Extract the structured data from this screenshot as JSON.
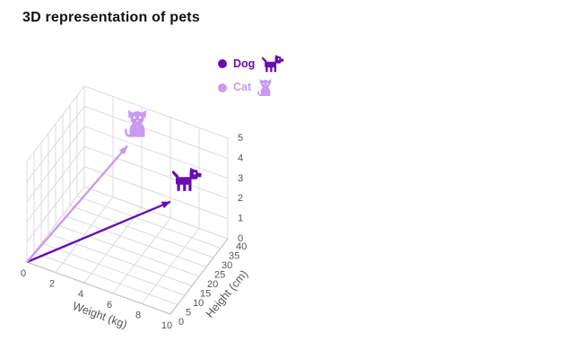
{
  "colors": {
    "dog": "#6a0dad",
    "cat": "#c89af0",
    "grid": "#dcdcdc",
    "axis_edge": "#c6c6c6",
    "tick_label": "#555555",
    "axis_title": "#555555",
    "title_text": "#111111",
    "background": "#ffffff"
  },
  "legend": {
    "items": [
      {
        "label": "Dog",
        "icon": "dog-icon",
        "series": 0
      },
      {
        "label": "Cat",
        "icon": "cat-icon",
        "series": 1
      }
    ]
  },
  "chart_data": {
    "type": "scatter",
    "projection": "3d",
    "title": "3D representation of pets",
    "series": [
      {
        "name": "Dog",
        "color": "#6a0dad",
        "vector_from_origin": true,
        "point": {
          "weight_kg": 7,
          "height_cm": 30,
          "z": 2
        }
      },
      {
        "name": "Cat",
        "color": "#c89af0",
        "vector_from_origin": true,
        "point": {
          "weight_kg": 4,
          "height_cm": 30,
          "z": 4
        }
      }
    ],
    "axes": {
      "x": {
        "label": "Weight (kg)",
        "ticks": [
          0,
          2,
          4,
          6,
          8,
          10
        ],
        "range": [
          0,
          10
        ]
      },
      "y": {
        "label": "Height (cm)",
        "ticks": [
          0,
          5,
          10,
          15,
          20,
          25,
          30,
          35,
          40
        ],
        "range": [
          0,
          40
        ]
      },
      "z": {
        "label": "",
        "ticks": [
          0,
          1,
          2,
          3,
          4,
          5
        ],
        "range": [
          0,
          5
        ]
      }
    },
    "grid": true,
    "legend_position": "top-right"
  }
}
